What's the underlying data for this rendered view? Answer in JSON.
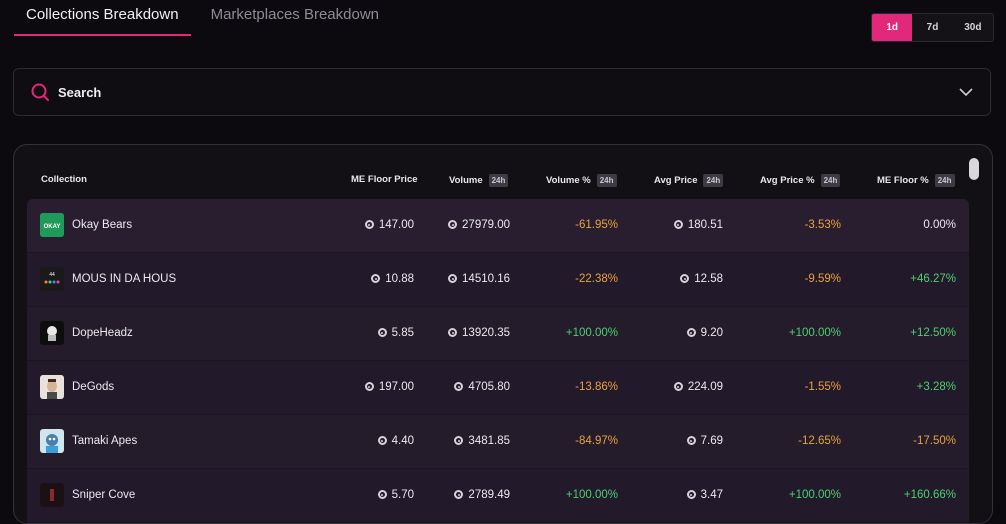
{
  "tabs": [
    {
      "label": "Collections Breakdown",
      "active": true
    },
    {
      "label": "Marketplaces Breakdown",
      "active": false
    }
  ],
  "time_range": {
    "options": [
      "1d",
      "7d",
      "30d"
    ],
    "selected": "1d"
  },
  "search": {
    "label": "Search"
  },
  "table": {
    "headers": {
      "collection": "Collection",
      "floor": "ME Floor Price",
      "volume": "Volume",
      "volume_pct": "Volume %",
      "avg_price": "Avg Price",
      "avg_price_pct": "Avg Price %",
      "floor_pct": "ME Floor %",
      "badge": "24h"
    },
    "rows": [
      {
        "name": "Okay Bears",
        "floor": "147.00",
        "volume": "27979.00",
        "volume_pct": "-61.95%",
        "avg_price": "180.51",
        "avg_price_pct": "-3.53%",
        "floor_pct": "0.00%"
      },
      {
        "name": "MOUS IN DA HOUS",
        "floor": "10.88",
        "volume": "14510.16",
        "volume_pct": "-22.38%",
        "avg_price": "12.58",
        "avg_price_pct": "-9.59%",
        "floor_pct": "+46.27%"
      },
      {
        "name": "DopeHeadz",
        "floor": "5.85",
        "volume": "13920.35",
        "volume_pct": "+100.00%",
        "avg_price": "9.20",
        "avg_price_pct": "+100.00%",
        "floor_pct": "+12.50%"
      },
      {
        "name": "DeGods",
        "floor": "197.00",
        "volume": "4705.80",
        "volume_pct": "-13.86%",
        "avg_price": "224.09",
        "avg_price_pct": "-1.55%",
        "floor_pct": "+3.28%"
      },
      {
        "name": "Tamaki Apes",
        "floor": "4.40",
        "volume": "3481.85",
        "volume_pct": "-84.97%",
        "avg_price": "7.69",
        "avg_price_pct": "-12.65%",
        "floor_pct": "-17.50%"
      },
      {
        "name": "Sniper Cove",
        "floor": "5.70",
        "volume": "2789.49",
        "volume_pct": "+100.00%",
        "avg_price": "3.47",
        "avg_price_pct": "+100.00%",
        "floor_pct": "+160.66%"
      }
    ]
  },
  "colors": {
    "accent": "#e2287a",
    "negative": "#e9a23b",
    "positive": "#4fcf72"
  }
}
